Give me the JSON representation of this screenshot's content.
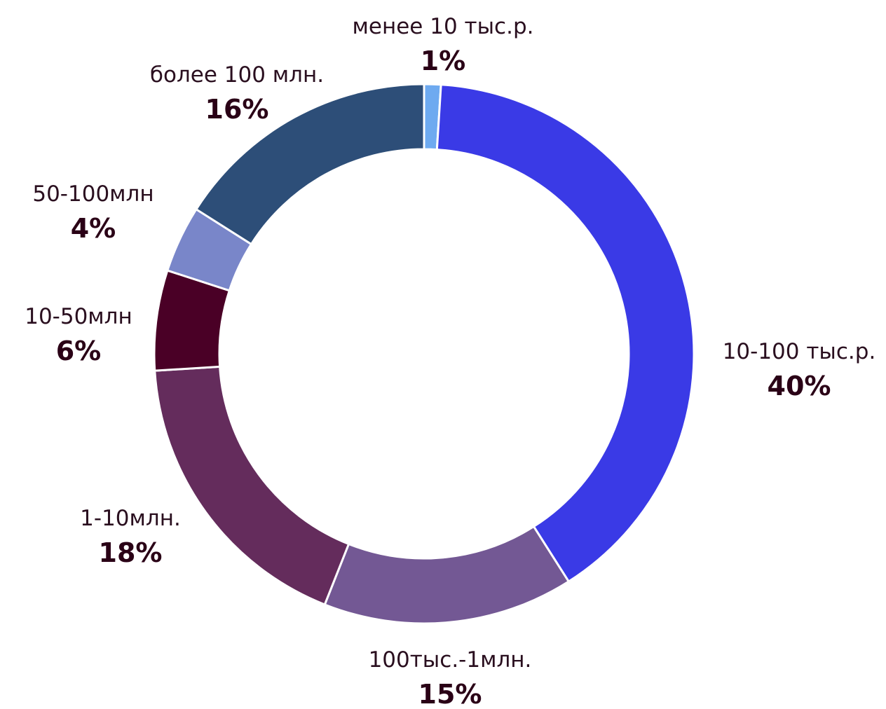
{
  "chart_data": {
    "type": "pie",
    "style": "donut",
    "title": "",
    "legend": "none",
    "slices": [
      {
        "label": "менее 10 тыс.р.",
        "value": 1,
        "value_label": "1%",
        "color": "#6eaaf0"
      },
      {
        "label": "10-100 тыс.р.",
        "value": 40,
        "value_label": "40%",
        "color": "#3a3ae6"
      },
      {
        "label": "100тыс.-1млн.",
        "value": 15,
        "value_label": "15%",
        "color": "#735894"
      },
      {
        "label": "1-10млн.",
        "value": 18,
        "value_label": "18%",
        "color": "#642c5c"
      },
      {
        "label": "10-50млн",
        "value": 6,
        "value_label": "6%",
        "color": "#4a0026"
      },
      {
        "label": "50-100млн",
        "value": 4,
        "value_label": "4%",
        "color": "#7986c9"
      },
      {
        "label": "более 100 млн.",
        "value": 16,
        "value_label": "16%",
        "color": "#2d4e78"
      }
    ]
  }
}
